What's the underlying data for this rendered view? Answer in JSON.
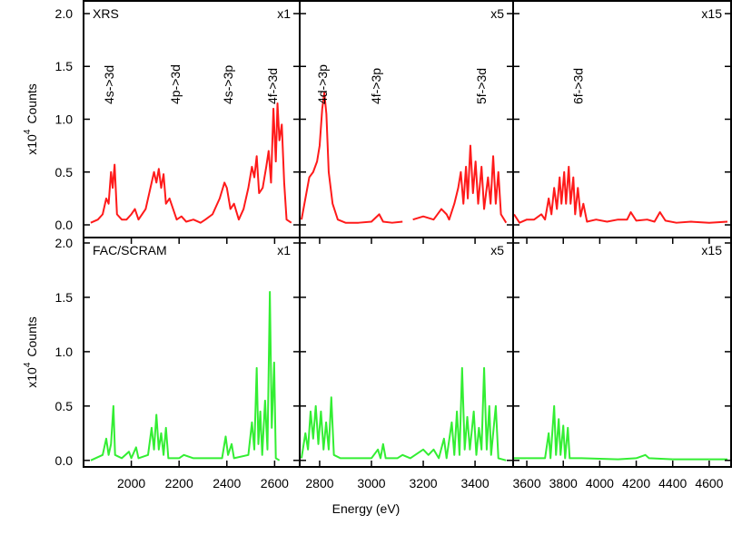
{
  "xlabel": "Energy (eV)",
  "chart_data": [
    {
      "type": "line",
      "label": "XRS",
      "scale_label": "x1",
      "ylabel": {
        "prefix": "x10",
        "exponent": "4",
        "text": "Counts"
      },
      "xlim": [
        1800,
        2705
      ],
      "ylim": [
        -0.12,
        2.12
      ],
      "yticks": [
        {
          "value": 0,
          "label": "0.0"
        },
        0.5,
        {
          "value": 1,
          "label": "1.0"
        },
        1.5,
        {
          "value": 2,
          "label": "2.0"
        }
      ],
      "annotations": [
        {
          "text": "4s->3d",
          "x": 1907
        },
        {
          "text": "4p->3d",
          "x": 2185
        },
        {
          "text": "4s->3p",
          "x": 2405
        },
        {
          "text": "4f->3d",
          "x": 2590
        }
      ],
      "x": [
        1830,
        1860,
        1880,
        1895,
        1905,
        1915,
        1922,
        1930,
        1940,
        1960,
        1980,
        2000,
        2015,
        2030,
        2060,
        2080,
        2095,
        2105,
        2115,
        2125,
        2135,
        2145,
        2160,
        2175,
        2190,
        2210,
        2230,
        2260,
        2290,
        2310,
        2340,
        2370,
        2390,
        2400,
        2415,
        2430,
        2450,
        2470,
        2490,
        2505,
        2515,
        2525,
        2535,
        2550,
        2565,
        2575,
        2585,
        2595,
        2605,
        2612,
        2620,
        2630,
        2640,
        2650,
        2670
      ],
      "series": [
        {
          "color": "#ff1a1a",
          "values": [
            0.02,
            0.05,
            0.1,
            0.25,
            0.2,
            0.5,
            0.35,
            0.57,
            0.1,
            0.05,
            0.05,
            0.1,
            0.15,
            0.05,
            0.15,
            0.35,
            0.5,
            0.4,
            0.53,
            0.35,
            0.48,
            0.2,
            0.25,
            0.15,
            0.05,
            0.08,
            0.03,
            0.05,
            0.02,
            0.05,
            0.1,
            0.25,
            0.4,
            0.35,
            0.15,
            0.2,
            0.05,
            0.15,
            0.35,
            0.55,
            0.45,
            0.65,
            0.3,
            0.35,
            0.55,
            0.7,
            0.4,
            1.1,
            0.6,
            1.15,
            0.8,
            0.95,
            0.4,
            0.05,
            0.02
          ]
        }
      ]
    },
    {
      "type": "line",
      "scale_label": "x5",
      "xlim": [
        2723,
        3547
      ],
      "ylim": [
        -0.12,
        2.12
      ],
      "yticks": [
        {
          "value": 0,
          "label": "0.0"
        },
        0.5,
        {
          "value": 1,
          "label": "1.0"
        },
        1.5,
        {
          "value": 2,
          "label": "2.0"
        }
      ],
      "annotations": [
        {
          "text": "4d->3p",
          "x": 2810
        },
        {
          "text": "4f->3p",
          "x": 3018
        },
        {
          "text": "5f->3d",
          "x": 3425
        }
      ],
      "x": [
        2730,
        2745,
        2760,
        2775,
        2790,
        2800,
        2810,
        2818,
        2826,
        2835,
        2850,
        2870,
        2900,
        2950,
        3000,
        3030,
        3045,
        3080,
        3120,
        3140,
        3160,
        3200,
        3240,
        3270,
        3290,
        3300,
        3320,
        3335,
        3345,
        3355,
        3365,
        3372,
        3382,
        3392,
        3402,
        3412,
        3425,
        3435,
        3450,
        3460,
        3470,
        3480,
        3490,
        3500,
        3520
      ],
      "series": [
        {
          "color": "#ff1a1a",
          "values": [
            0.05,
            0.25,
            0.45,
            0.5,
            0.6,
            0.75,
            1.1,
            1.25,
            1.05,
            0.5,
            0.2,
            0.05,
            0.02,
            0.02,
            0.03,
            0.1,
            0.03,
            0.02,
            0.03,
            null,
            0.05,
            0.08,
            0.05,
            0.15,
            0.1,
            0.05,
            0.2,
            0.35,
            0.5,
            0.2,
            0.55,
            0.25,
            0.75,
            0.3,
            0.6,
            0.2,
            0.55,
            0.15,
            0.45,
            0.2,
            0.65,
            0.2,
            0.5,
            0.1,
            0.02
          ]
        }
      ]
    },
    {
      "type": "line",
      "scale_label": "x15",
      "xlim": [
        3525,
        4720
      ],
      "ylim": [
        -0.12,
        2.12
      ],
      "yticks": [
        {
          "value": 0,
          "label": "0.0"
        },
        0.5,
        {
          "value": 1,
          "label": "1.0"
        },
        1.5,
        {
          "value": 2,
          "label": "2.0"
        }
      ],
      "annotations": [
        {
          "text": "6f->3d",
          "x": 3880
        }
      ],
      "x": [
        3530,
        3560,
        3600,
        3640,
        3680,
        3700,
        3720,
        3735,
        3750,
        3765,
        3780,
        3790,
        3805,
        3815,
        3830,
        3840,
        3855,
        3865,
        3880,
        3895,
        3910,
        3930,
        3980,
        4040,
        4100,
        4150,
        4170,
        4200,
        4260,
        4300,
        4330,
        4360,
        4420,
        4500,
        4600,
        4700
      ],
      "series": [
        {
          "color": "#ff1a1a",
          "values": [
            0.1,
            0.02,
            0.05,
            0.05,
            0.1,
            0.05,
            0.25,
            0.1,
            0.35,
            0.15,
            0.45,
            0.2,
            0.5,
            0.2,
            0.55,
            0.2,
            0.45,
            0.1,
            0.35,
            0.08,
            0.2,
            0.03,
            0.05,
            0.03,
            0.05,
            0.05,
            0.12,
            0.04,
            0.05,
            0.03,
            0.12,
            0.04,
            0.02,
            0.03,
            0.02,
            0.03
          ]
        }
      ]
    },
    {
      "type": "line",
      "label": "FAC/SCRAM",
      "scale_label": "x1",
      "ylabel": {
        "prefix": "x10",
        "exponent": "4",
        "text": "Counts"
      },
      "xlim": [
        1800,
        2705
      ],
      "ylim": [
        -0.06,
        2.05
      ],
      "yticks": [
        {
          "value": 0,
          "label": "0.0"
        },
        0.5,
        {
          "value": 1,
          "label": "1.0"
        },
        1.5,
        {
          "value": 2,
          "label": "2.0"
        }
      ],
      "xticks": [
        2000,
        2200,
        2400,
        2600
      ],
      "x": [
        1830,
        1880,
        1895,
        1905,
        1915,
        1925,
        1932,
        1960,
        1990,
        2000,
        2020,
        2030,
        2070,
        2085,
        2095,
        2105,
        2115,
        2125,
        2135,
        2145,
        2155,
        2200,
        2220,
        2260,
        2380,
        2395,
        2405,
        2420,
        2430,
        2490,
        2505,
        2515,
        2525,
        2532,
        2540,
        2548,
        2560,
        2570,
        2580,
        2588,
        2598,
        2605,
        2620
      ],
      "series": [
        {
          "color": "#33ee33",
          "values": [
            0,
            0.05,
            0.2,
            0.05,
            0.15,
            0.5,
            0.05,
            0.02,
            0.08,
            0.02,
            0.12,
            0.02,
            0.05,
            0.3,
            0.1,
            0.42,
            0.1,
            0.25,
            0.05,
            0.3,
            0.02,
            0.02,
            0.05,
            0.02,
            0.02,
            0.22,
            0.05,
            0.15,
            0.02,
            0.05,
            0.35,
            0.1,
            0.85,
            0.15,
            0.45,
            0.05,
            0.55,
            0.1,
            1.55,
            0.3,
            0.9,
            0.02,
            0
          ]
        }
      ]
    },
    {
      "type": "line",
      "scale_label": "x5",
      "xlim": [
        2723,
        3547
      ],
      "ylim": [
        -0.06,
        2.05
      ],
      "yticks": [
        {
          "value": 0,
          "label": "0.0"
        },
        0.5,
        {
          "value": 1,
          "label": "1.0"
        },
        1.5,
        {
          "value": 2,
          "label": "2.0"
        }
      ],
      "xticks": [
        2800,
        3000,
        3200,
        3400
      ],
      "x": [
        2730,
        2745,
        2755,
        2765,
        2775,
        2785,
        2795,
        2805,
        2815,
        2825,
        2835,
        2845,
        2855,
        2880,
        3000,
        3025,
        3035,
        3045,
        3055,
        3100,
        3120,
        3150,
        3200,
        3220,
        3240,
        3260,
        3280,
        3290,
        3310,
        3320,
        3330,
        3340,
        3350,
        3360,
        3370,
        3380,
        3395,
        3405,
        3415,
        3425,
        3435,
        3445,
        3455,
        3462,
        3480,
        3490,
        3520
      ],
      "series": [
        {
          "color": "#33ee33",
          "values": [
            0.02,
            0.25,
            0.1,
            0.45,
            0.2,
            0.5,
            0.15,
            0.45,
            0.1,
            0.35,
            0.1,
            0.58,
            0.05,
            0.02,
            0.02,
            0.1,
            0.02,
            0.15,
            0.02,
            0.02,
            0.05,
            0.02,
            0.1,
            0.05,
            0.1,
            0.02,
            0.2,
            0.02,
            0.35,
            0.05,
            0.45,
            0.05,
            0.85,
            0.1,
            0.4,
            0.1,
            0.45,
            0.05,
            0.3,
            0.1,
            0.85,
            0.1,
            0.5,
            0.05,
            0.5,
            0.02,
            0
          ]
        }
      ]
    },
    {
      "type": "line",
      "scale_label": "x15",
      "xlim": [
        3525,
        4720
      ],
      "ylim": [
        -0.06,
        2.05
      ],
      "yticks": [
        {
          "value": 0,
          "label": "0.0"
        },
        0.5,
        {
          "value": 1,
          "label": "1.0"
        },
        1.5,
        {
          "value": 2,
          "label": "2.0"
        }
      ],
      "xticks": [
        3600,
        3800,
        4000,
        4200,
        4400,
        4600
      ],
      "x": [
        3530,
        3700,
        3720,
        3730,
        3750,
        3760,
        3775,
        3785,
        3800,
        3810,
        3825,
        3835,
        3900,
        4100,
        4200,
        4250,
        4270,
        4400,
        4700
      ],
      "series": [
        {
          "color": "#33ee33",
          "values": [
            0.02,
            0.02,
            0.25,
            0.02,
            0.5,
            0.05,
            0.38,
            0.05,
            0.32,
            0.02,
            0.3,
            0.02,
            0.02,
            0.01,
            0.02,
            0.05,
            0.02,
            0.01,
            0.01
          ]
        }
      ]
    }
  ]
}
